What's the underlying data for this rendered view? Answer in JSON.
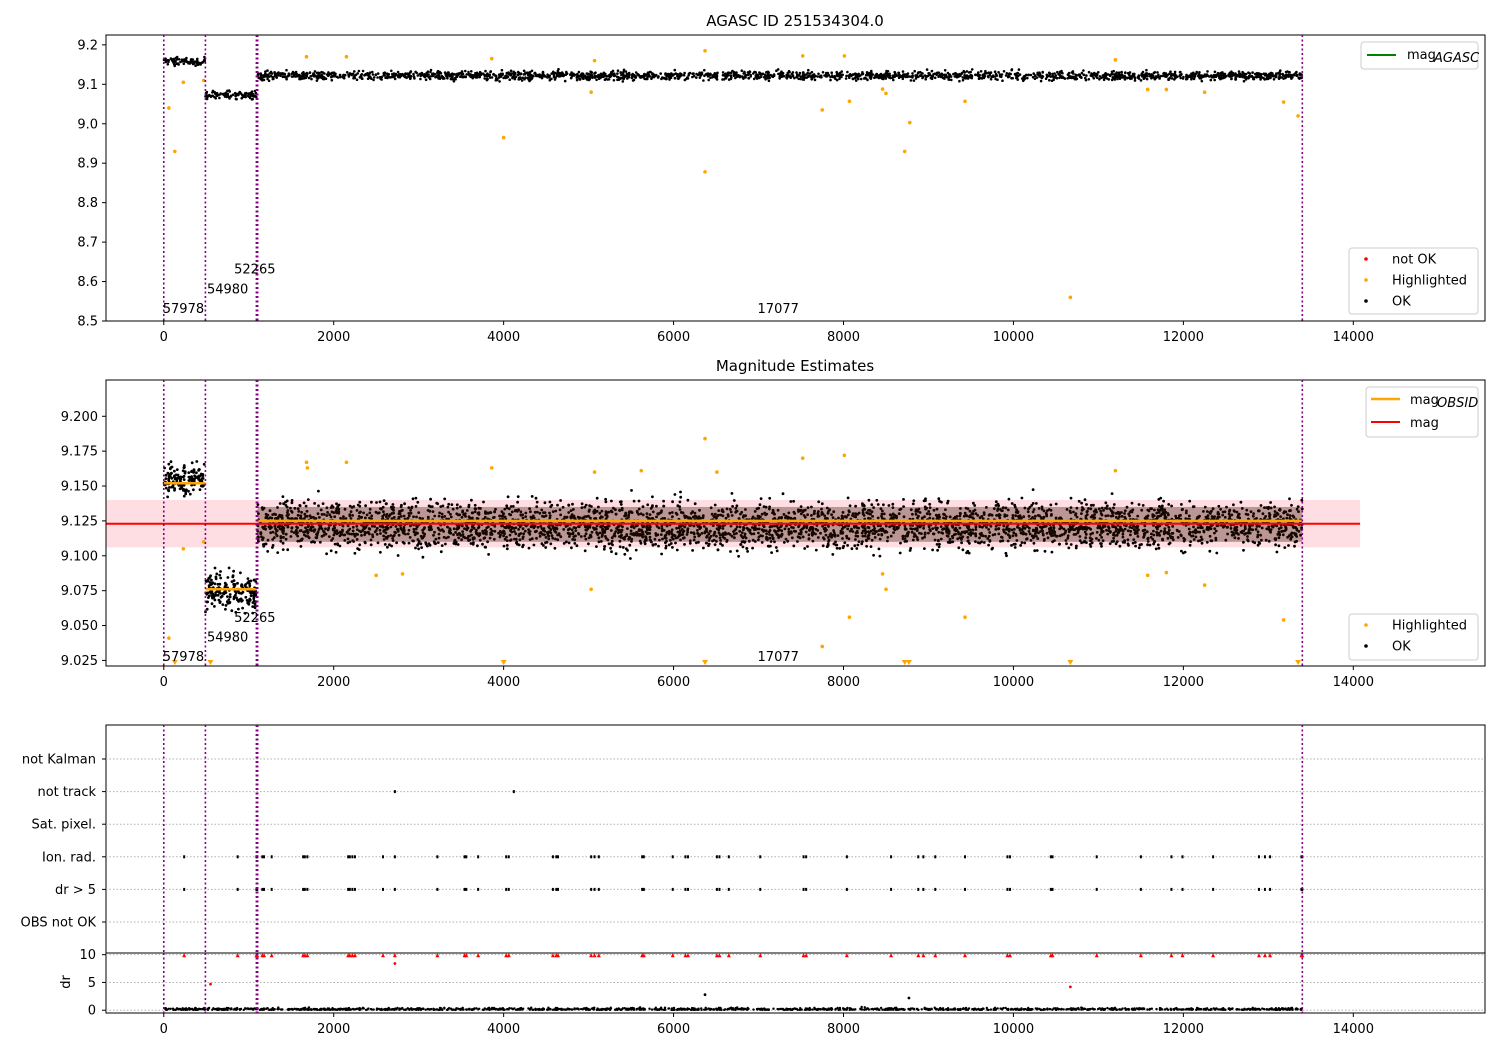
{
  "chart_data": [
    {
      "type": "scatter",
      "title": "AGASC ID 251534304.0",
      "xlim": [
        -680,
        15550
      ],
      "ylim": [
        8.5,
        9.225
      ],
      "xticks": [
        "0",
        "2000",
        "4000",
        "6000",
        "8000",
        "10000",
        "12000",
        "14000"
      ],
      "yticks": [
        "8.5",
        "8.6",
        "8.7",
        "8.8",
        "8.9",
        "9.0",
        "9.1",
        "9.2"
      ],
      "vlines": [
        0,
        490,
        1090,
        1105,
        13400
      ],
      "obs_labels": [
        {
          "text": "57978",
          "x": 0,
          "y": 8.53
        },
        {
          "text": "54980",
          "x": 520,
          "y": 8.58
        },
        {
          "text": "52265",
          "x": 840,
          "y": 8.63
        },
        {
          "text": "17077",
          "x": 7000,
          "y": 8.53
        }
      ],
      "segments": [
        {
          "x": [
            0,
            490
          ],
          "mean": 9.158,
          "noise": 0.007
        },
        {
          "x": [
            490,
            1090
          ],
          "mean": 9.073,
          "noise": 0.007
        },
        {
          "x": [
            1105,
            13400
          ],
          "mean": 9.122,
          "noise": 0.008
        }
      ],
      "series": [
        {
          "name": "not OK",
          "color": "#ff0000",
          "values": []
        },
        {
          "name": "Highlighted",
          "color": "#ffa500",
          "values": [
            [
              60,
              9.04
            ],
            [
              130,
              8.93
            ],
            [
              230,
              9.105
            ],
            [
              470,
              9.11
            ],
            [
              1680,
              9.17
            ],
            [
              2150,
              9.17
            ],
            [
              3860,
              9.165
            ],
            [
              4000,
              8.965
            ],
            [
              5030,
              9.08
            ],
            [
              5070,
              9.16
            ],
            [
              6370,
              9.185
            ],
            [
              6370,
              8.878
            ],
            [
              7520,
              9.172
            ],
            [
              7750,
              9.035
            ],
            [
              8010,
              9.172
            ],
            [
              8070,
              9.057
            ],
            [
              8460,
              9.088
            ],
            [
              8500,
              9.077
            ],
            [
              8720,
              8.93
            ],
            [
              8780,
              9.003
            ],
            [
              9430,
              9.057
            ],
            [
              10670,
              8.56
            ],
            [
              11200,
              9.162
            ],
            [
              11580,
              9.087
            ],
            [
              11800,
              9.087
            ],
            [
              12250,
              9.08
            ],
            [
              13180,
              9.055
            ],
            [
              13350,
              9.02
            ]
          ]
        },
        {
          "name": "OK",
          "color": "#000000",
          "values": []
        }
      ],
      "legend_top": [
        {
          "name": "mag",
          "sub": "AGASC",
          "color": "#008000"
        }
      ],
      "legend_bottom": [
        {
          "name": "not OK",
          "color": "#ff0000"
        },
        {
          "name": "Highlighted",
          "color": "#ffa500"
        },
        {
          "name": "OK",
          "color": "#000000"
        }
      ]
    },
    {
      "type": "scatter",
      "title": "Magnitude Estimates",
      "xlim": [
        -680,
        15550
      ],
      "ylim": [
        9.021,
        9.226
      ],
      "xticks": [
        "0",
        "2000",
        "4000",
        "6000",
        "8000",
        "10000",
        "12000",
        "14000"
      ],
      "yticks": [
        "9.025",
        "9.050",
        "9.075",
        "9.100",
        "9.125",
        "9.150",
        "9.175",
        "9.200"
      ],
      "vlines": [
        0,
        490,
        1090,
        1105,
        13400
      ],
      "obs_labels": [
        {
          "text": "57978",
          "x": 0,
          "y": 9.0275
        },
        {
          "text": "54980",
          "x": 520,
          "y": 9.0415
        },
        {
          "text": "52265",
          "x": 840,
          "y": 9.0555
        },
        {
          "text": "17077",
          "x": 7000,
          "y": 9.0275
        }
      ],
      "band": {
        "y0": 9.106,
        "y1": 9.14,
        "x0": -680,
        "x1": 14080,
        "color": "#ffb6c1"
      },
      "mag_line": {
        "y": 9.123,
        "x0": -680,
        "x1": 14080,
        "color": "#ff0000"
      },
      "obsid_levels": [
        {
          "x0": 0,
          "x1": 490,
          "y": 9.152
        },
        {
          "x0": 490,
          "x1": 1090,
          "y": 9.076
        },
        {
          "x0": 1105,
          "x1": 13400,
          "y": 9.125
        }
      ],
      "segments": [
        {
          "x": [
            0,
            490
          ],
          "mean": 9.155,
          "noise": 0.008
        },
        {
          "x": [
            490,
            1090
          ],
          "mean": 9.074,
          "noise": 0.01
        },
        {
          "x": [
            1105,
            13400
          ],
          "mean": 9.122,
          "noise": 0.012
        }
      ],
      "series": [
        {
          "name": "Highlighted",
          "color": "#ffa500",
          "values": [
            [
              60,
              9.041
            ],
            [
              230,
              9.105
            ],
            [
              470,
              9.11
            ],
            [
              1680,
              9.167
            ],
            [
              1690,
              9.163
            ],
            [
              2150,
              9.167
            ],
            [
              2500,
              9.086
            ],
            [
              2810,
              9.087
            ],
            [
              3860,
              9.163
            ],
            [
              5030,
              9.076
            ],
            [
              5070,
              9.16
            ],
            [
              5620,
              9.161
            ],
            [
              6370,
              9.184
            ],
            [
              6510,
              9.16
            ],
            [
              7520,
              9.17
            ],
            [
              7750,
              9.035
            ],
            [
              8010,
              9.172
            ],
            [
              8070,
              9.056
            ],
            [
              8460,
              9.087
            ],
            [
              8500,
              9.076
            ],
            [
              9430,
              9.056
            ],
            [
              11200,
              9.161
            ],
            [
              11580,
              9.086
            ],
            [
              11800,
              9.088
            ],
            [
              12250,
              9.079
            ],
            [
              13180,
              9.054
            ]
          ]
        },
        {
          "name": "OK",
          "color": "#000000",
          "values": []
        }
      ],
      "floor_markers": [
        130,
        550,
        4000,
        6370,
        8720,
        8770,
        10670,
        13350
      ],
      "legend_top": [
        {
          "name": "mag",
          "sub": "OBSID",
          "color": "#ffa500"
        },
        {
          "name": "mag",
          "sub": "",
          "color": "#ff0000"
        }
      ],
      "legend_bottom": [
        {
          "name": "Highlighted",
          "color": "#ffa500"
        },
        {
          "name": "OK",
          "color": "#000000"
        }
      ]
    },
    {
      "type": "scatter",
      "title": "",
      "xlim": [
        -680,
        15550
      ],
      "categories": [
        "not Kalman",
        "not track",
        "Sat. pixel.",
        "Ion. rad.",
        "dr > 5",
        "OBS not OK"
      ],
      "vlines": [
        0,
        490,
        1090,
        1105,
        13400
      ],
      "flags": {
        "not track": [
          2720,
          4120
        ],
        "Ion. rad.": [
          240,
          870,
          1090,
          1100,
          1160,
          1180,
          1270,
          1640,
          1660,
          1690,
          2170,
          2190,
          2220,
          2250,
          2580,
          2720,
          3220,
          3540,
          3560,
          3700,
          4030,
          4060,
          4580,
          4620,
          4640,
          5030,
          5070,
          5120,
          5630,
          5650,
          5990,
          6140,
          6170,
          6510,
          6540,
          6650,
          7020,
          7530,
          7560,
          8040,
          8560,
          8880,
          8940,
          9080,
          9430,
          9930,
          9960,
          10440,
          10460,
          10980,
          11500,
          11860,
          11990,
          12350,
          12890,
          12960,
          13020,
          13390,
          13400
        ],
        "dr > 5": [
          240,
          870,
          1090,
          1100,
          1160,
          1180,
          1270,
          1640,
          1660,
          1690,
          2170,
          2190,
          2220,
          2250,
          2580,
          2720,
          3220,
          3540,
          3560,
          3700,
          4030,
          4060,
          4580,
          4620,
          4640,
          5030,
          5070,
          5120,
          5630,
          5650,
          5990,
          6140,
          6170,
          6510,
          6540,
          6650,
          7020,
          7530,
          7560,
          8040,
          8560,
          8880,
          8940,
          9080,
          9430,
          9930,
          9960,
          10440,
          10460,
          10980,
          11500,
          11860,
          11990,
          12350,
          12890,
          12960,
          13020,
          13390,
          13400
        ]
      },
      "dr": {
        "ylabel": "dr",
        "ylim": [
          -0.5,
          10.3
        ],
        "yticks": [
          "0",
          "5",
          "10"
        ],
        "high_x": [
          240,
          870,
          1090,
          1100,
          1160,
          1180,
          1270,
          1640,
          1660,
          1690,
          2170,
          2190,
          2220,
          2250,
          2580,
          2720,
          3220,
          3540,
          3560,
          3700,
          4030,
          4060,
          4580,
          4620,
          4640,
          5030,
          5070,
          5120,
          5630,
          5650,
          5990,
          6140,
          6170,
          6510,
          6540,
          6650,
          7020,
          7530,
          7560,
          8040,
          8560,
          8880,
          8940,
          9080,
          9430,
          9930,
          9960,
          10440,
          10460,
          10980,
          11500,
          11860,
          11990,
          12350,
          12890,
          12960,
          13020,
          13390,
          13400
        ],
        "outliers": [
          [
            550,
            4.7
          ],
          [
            2720,
            8.4
          ],
          [
            6370,
            2.8
          ],
          [
            8770,
            2.2
          ],
          [
            10670,
            4.2
          ]
        ]
      },
      "xticks": [
        "0",
        "2000",
        "4000",
        "6000",
        "8000",
        "10000",
        "12000",
        "14000"
      ]
    }
  ]
}
